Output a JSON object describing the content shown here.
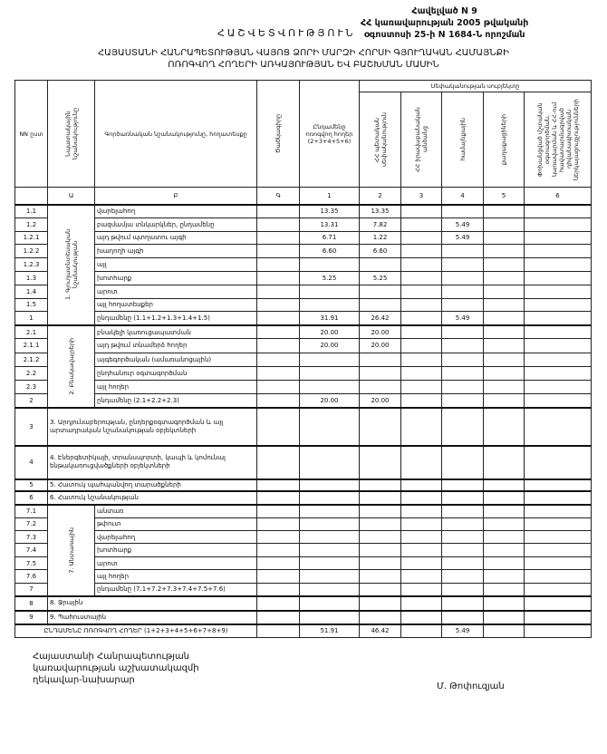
{
  "header": {
    "title": "ՀԱՇՎԵՏՎՈՒԹՅՈՒՆ",
    "annex": [
      "Հավելված N 9",
      "ՀՀ կառավարության 2005 թվականի",
      "օգոստոսի 25-ի N 1684-Ն որոշման"
    ],
    "heading": [
      "ՀԱՅԱՍՏԱՆԻ ՀԱՆՐԱՊԵՏՈՒԹՅԱՆ ՎԱՅՈՑ ՁՈՐԻ ՄԱՐԶԻ ՀՈՐՍԻ ԳՅՈՒՂԱԿԱՆ ՀԱՄԱՅՆՔԻ",
      "ՈՌՈԳՎՈՂ ՀՈՂԵՐԻ ԱՌԿԱՅՈՒԹՅԱՆ ԵՎ ԲԱՇԽՄԱՆ ՄԱՍԻՆ"
    ]
  },
  "table": {
    "columns": {
      "nn": "NN ըստ",
      "purpose": "Նպատակային նշանակությունը",
      "function": "Գործառնական նշանակությունը, հողատեսքը",
      "code": "Ծածկագիրը",
      "total": "Ընդամենը ոռոգվող հողեր (2+3+4+5+6)",
      "ownership_group": "Սեփականության սուբյեկտը",
      "c2": "ՀՀ պետական սեփականություն",
      "c3": "ՀՀ իրավաբանական անձանց",
      "c4": "համայնքային",
      "c5": "քաղաքացիների",
      "c6": "Փոխանցված մշտական օգտագործման, կառավարման և ՀՀ-ում հավատարմագրված դիվանագիտական ներկայացուցչությունների"
    },
    "letters": [
      "",
      "Ա",
      "Բ",
      "Գ",
      "1",
      "2",
      "3",
      "4",
      "5",
      "6"
    ],
    "groups": [
      {
        "label": "1. Գյուղատնտեսական նշանակության",
        "rows": [
          {
            "n": "1.1",
            "desc": "վարելահող",
            "v": [
              "13.35",
              "13.35",
              "",
              "",
              "",
              ""
            ]
          },
          {
            "n": "1.2",
            "desc": "բազմամյա տնկարկներ, ընդամենը",
            "v": [
              "13.31",
              "7.82",
              "",
              "5.49",
              "",
              ""
            ]
          },
          {
            "n": "1.2.1",
            "desc": "այդ թվում          պտղատու այգի",
            "v": [
              "6.71",
              "1.22",
              "",
              "5.49",
              "",
              ""
            ]
          },
          {
            "n": "1.2.2",
            "desc": "                          խաղողի այգի",
            "v": [
              "6.60",
              "6.60",
              "",
              "",
              "",
              ""
            ]
          },
          {
            "n": "1.2.3",
            "desc": "այլ",
            "v": [
              "",
              "",
              "",
              "",
              "",
              ""
            ]
          },
          {
            "n": "1.3",
            "desc": "խոտհարք",
            "v": [
              "5.25",
              "5.25",
              "",
              "",
              "",
              ""
            ]
          },
          {
            "n": "1.4",
            "desc": "արոտ",
            "v": [
              "",
              "",
              "",
              "",
              "",
              ""
            ]
          },
          {
            "n": "1.5",
            "desc": "այլ հողատեսքեր",
            "v": [
              "",
              "",
              "",
              "",
              "",
              ""
            ]
          },
          {
            "n": "1",
            "desc": "ընդամենը (1.1+1.2+1.3+1.4+1.5)",
            "v": [
              "31.91",
              "26.42",
              "",
              "5.49",
              "",
              ""
            ]
          }
        ]
      },
      {
        "label": "2. Բնակավայրերի",
        "rows": [
          {
            "n": "2.1",
            "desc": "բնակելի կառուցապատման",
            "v": [
              "20.00",
              "20.00",
              "",
              "",
              "",
              ""
            ]
          },
          {
            "n": "2.1.1",
            "desc": "այդ թվում տնամերձ հողեր",
            "v": [
              "20.00",
              "20.00",
              "",
              "",
              "",
              ""
            ]
          },
          {
            "n": "2.1.2",
            "desc": "այգեգործական (ամառանոցային)",
            "v": [
              "",
              "",
              "",
              "",
              "",
              ""
            ]
          },
          {
            "n": "2.2",
            "desc": "ընդհանուր օգտագործման",
            "v": [
              "",
              "",
              "",
              "",
              "",
              ""
            ]
          },
          {
            "n": "2.3",
            "desc": "այլ հողեր",
            "v": [
              "",
              "",
              "",
              "",
              "",
              ""
            ]
          },
          {
            "n": "2",
            "desc": "ընդամենը (2.1+2.2+2.3)",
            "v": [
              "20.00",
              "20.00",
              "",
              "",
              "",
              ""
            ]
          }
        ]
      },
      {
        "n": "3",
        "desc": "3. Արդյունաբերության, ընդերքօգտագործման և այլ արտադրական նշանակության օբյեկտների",
        "v": [
          "",
          "",
          "",
          "",
          "",
          ""
        ]
      },
      {
        "n": "4",
        "desc": "4. Էներգետիկայի, տրանսպորտի, կապի և կոմունալ ենթակառուցվածքների օբյեկտների",
        "v": [
          "",
          "",
          "",
          "",
          "",
          ""
        ]
      },
      {
        "n": "5",
        "desc": "5. Հատուկ պահպանվող տարածքների",
        "v": [
          "",
          "",
          "",
          "",
          "",
          ""
        ]
      },
      {
        "n": "6",
        "desc": "6. Հատուկ նշանակության",
        "v": [
          "",
          "",
          "",
          "",
          "",
          ""
        ]
      },
      {
        "label": "7. Անտառային",
        "rows": [
          {
            "n": "7.1",
            "desc": "անտառ",
            "v": [
              "",
              "",
              "",
              "",
              "",
              ""
            ]
          },
          {
            "n": "7.2",
            "desc": "թփուտ",
            "v": [
              "",
              "",
              "",
              "",
              "",
              ""
            ]
          },
          {
            "n": "7.3",
            "desc": "վարելահող",
            "v": [
              "",
              "",
              "",
              "",
              "",
              ""
            ]
          },
          {
            "n": "7.4",
            "desc": "խոտհարք",
            "v": [
              "",
              "",
              "",
              "",
              "",
              ""
            ]
          },
          {
            "n": "7.5",
            "desc": "արոտ",
            "v": [
              "",
              "",
              "",
              "",
              "",
              ""
            ]
          },
          {
            "n": "7.6",
            "desc": "այլ հողեր",
            "v": [
              "",
              "",
              "",
              "",
              "",
              ""
            ]
          },
          {
            "n": "7",
            "desc": "ընդամենը (7.1+7.2+7.3+7.4+7.5+7.6)",
            "v": [
              "",
              "",
              "",
              "",
              "",
              ""
            ]
          }
        ]
      },
      {
        "n": "8",
        "desc": "8. Ջրային",
        "v": [
          "",
          "",
          "",
          "",
          "",
          ""
        ]
      },
      {
        "n": "9",
        "desc": "9. Պահուստային",
        "v": [
          "",
          "",
          "",
          "",
          "",
          ""
        ]
      }
    ],
    "grand_total": {
      "desc": "ԸՆԴԱՄԵՆԸ ՈՌՈԳՎՈՂ ՀՈՂԵՐ (1+2+3+4+5+6+7+8+9)",
      "v": [
        "51.91",
        "46.42",
        "",
        "5.49",
        "",
        ""
      ]
    }
  },
  "footer": {
    "position": [
      "Հայաստանի Հանրապետության",
      "կառավարության աշխատակազմի",
      "ղեկավար-նախարար"
    ],
    "signer": "Մ. Թոփուզյան"
  }
}
